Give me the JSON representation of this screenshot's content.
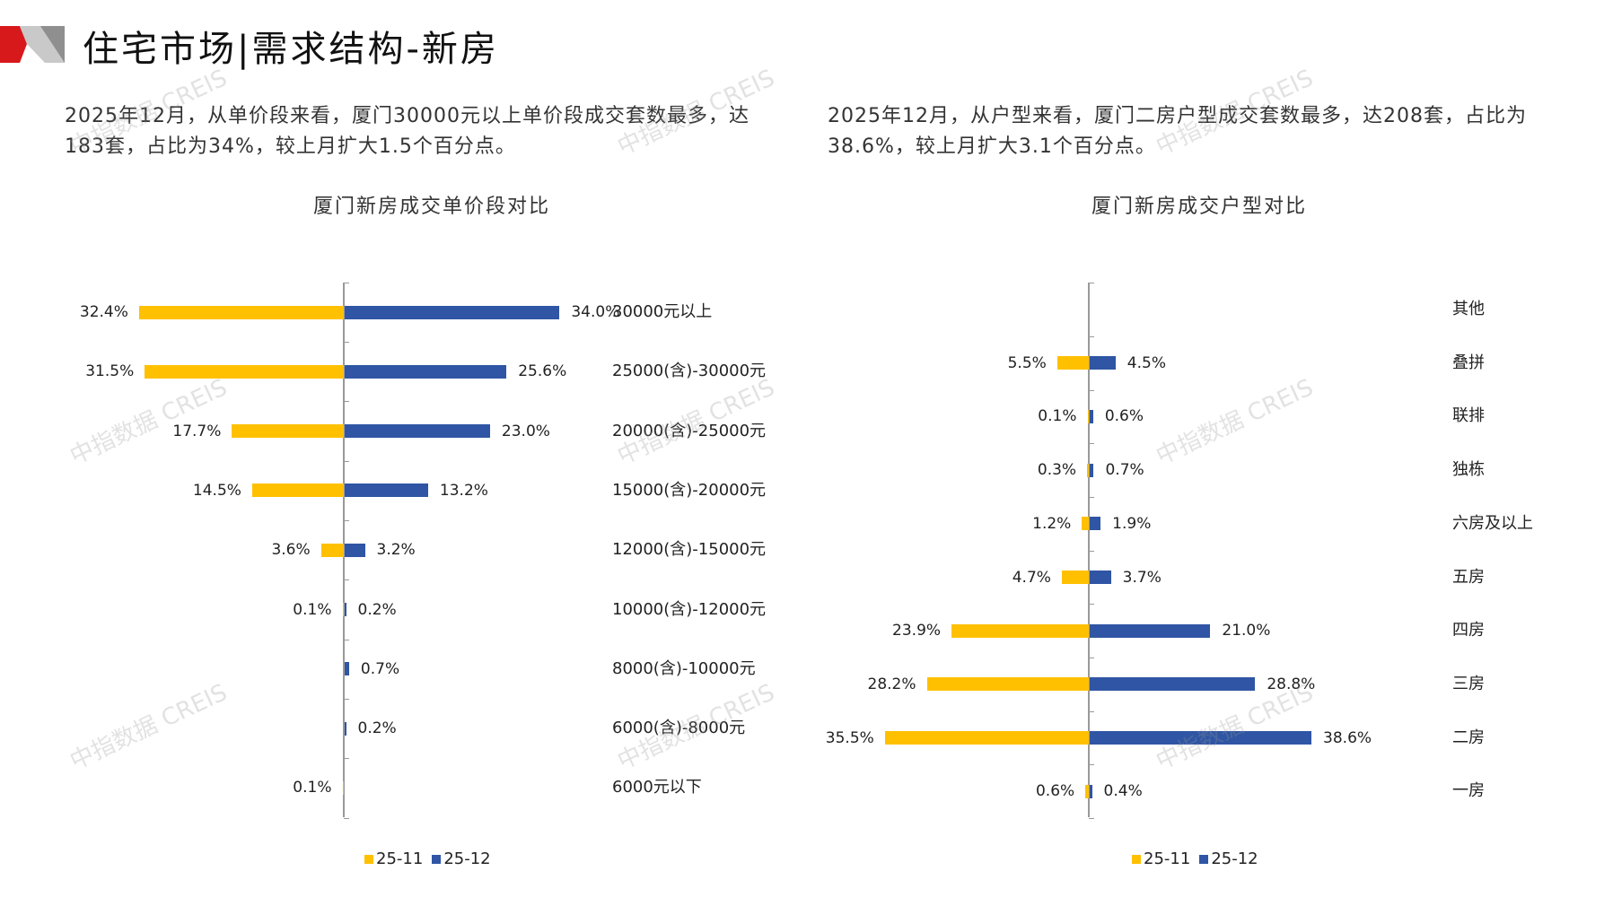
{
  "header": {
    "title": "住宅市场|需求结构-新房"
  },
  "left": {
    "text": "2025年12月，从单价段来看，厦门30000元以上单价段成交套数最多，达183套，占比为34%，较上月扩大1.5个百分点。"
  },
  "right": {
    "text": "2025年12月，从户型来看，厦门二房户型成交套数最多，达208套，占比为38.6%，较上月扩大3.1个百分点。"
  },
  "watermark": "中指数据 CREIS",
  "colors": {
    "s1": "#FFC000",
    "s2": "#2F55A4",
    "brand": "#D7191C"
  },
  "chart_data": [
    {
      "type": "bar",
      "orientation": "butterfly",
      "title": "厦门新房成交单价段对比",
      "unit": "%",
      "categories": [
        "30000元以上",
        "25000(含)-30000元",
        "20000(含)-25000元",
        "15000(含)-20000元",
        "12000(含)-15000元",
        "10000(含)-12000元",
        "8000(含)-10000元",
        "6000(含)-8000元",
        "6000元以下"
      ],
      "series": [
        {
          "name": "25-11",
          "values": [
            32.4,
            31.5,
            17.7,
            14.5,
            3.6,
            0.1,
            null,
            null,
            0.1
          ]
        },
        {
          "name": "25-12",
          "values": [
            34.0,
            25.6,
            23.0,
            13.2,
            3.2,
            0.2,
            0.7,
            0.2,
            null
          ]
        }
      ],
      "legend": "bottom"
    },
    {
      "type": "bar",
      "orientation": "butterfly",
      "title": "厦门新房成交户型对比",
      "unit": "%",
      "categories": [
        "其他",
        "叠拼",
        "联排",
        "独栋",
        "六房及以上",
        "五房",
        "四房",
        "三房",
        "二房",
        "一房"
      ],
      "series": [
        {
          "name": "25-11",
          "values": [
            null,
            5.5,
            0.1,
            0.3,
            1.2,
            4.7,
            23.9,
            28.2,
            35.5,
            0.6
          ]
        },
        {
          "name": "25-12",
          "values": [
            null,
            4.5,
            0.6,
            0.7,
            1.9,
            3.7,
            21.0,
            28.8,
            38.6,
            0.4
          ]
        }
      ],
      "legend": "bottom"
    }
  ]
}
